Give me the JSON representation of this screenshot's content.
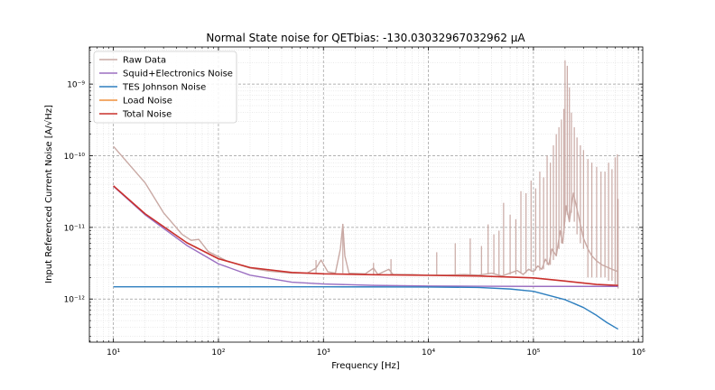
{
  "chart_data": {
    "type": "line",
    "title": "Normal State noise for QETbias: -130.03032967032962 μA",
    "xlabel": "Frequency [Hz]",
    "ylabel": "Input Referenced Current Noise [A/√Hz]",
    "xscale": "log",
    "yscale": "log",
    "xlim": [
      5.9,
      1100000.0
    ],
    "ylim": [
      2.5e-13,
      3.3e-09
    ],
    "grid": true,
    "legend_position": "top-left",
    "x_ticks": [
      {
        "value": 10,
        "label": "10¹"
      },
      {
        "value": 100,
        "label": "10²"
      },
      {
        "value": 1000,
        "label": "10³"
      },
      {
        "value": 10000,
        "label": "10⁴"
      },
      {
        "value": 100000,
        "label": "10⁵"
      },
      {
        "value": 1000000,
        "label": "10⁶"
      }
    ],
    "y_ticks": [
      {
        "value": 1e-12,
        "label": "10⁻¹²"
      },
      {
        "value": 1e-11,
        "label": "10⁻¹¹"
      },
      {
        "value": 1e-10,
        "label": "10⁻¹⁰"
      },
      {
        "value": 1e-09,
        "label": "10⁻⁹"
      }
    ],
    "series": [
      {
        "name": "Raw Data",
        "color": "#c9a9a4",
        "points": [
          [
            10,
            1.35e-10
          ],
          [
            20,
            4.2e-11
          ],
          [
            30,
            1.6e-11
          ],
          [
            45,
            8e-12
          ],
          [
            55,
            6.6e-12
          ],
          [
            65,
            6.8e-12
          ],
          [
            80,
            4.6e-12
          ],
          [
            120,
            3.4e-12
          ],
          [
            200,
            2.7e-12
          ],
          [
            300,
            2.45e-12
          ],
          [
            500,
            2.3e-12
          ],
          [
            700,
            2.3e-12
          ],
          [
            850,
            2.7e-12
          ],
          [
            950,
            3.5e-12
          ],
          [
            1100,
            2.4e-12
          ],
          [
            1300,
            2.3e-12
          ],
          [
            1450,
            5e-12
          ],
          [
            1530,
            1.1e-11
          ],
          [
            1600,
            4e-12
          ],
          [
            1750,
            2.3e-12
          ],
          [
            2500,
            2.25e-12
          ],
          [
            3000,
            2.7e-12
          ],
          [
            3300,
            2.2e-12
          ],
          [
            4200,
            2.6e-12
          ],
          [
            4600,
            2.2e-12
          ],
          [
            7000,
            2.2e-12
          ],
          [
            10000,
            2.15e-12
          ],
          [
            15000,
            2.15e-12
          ],
          [
            22000,
            2.2e-12
          ],
          [
            30000,
            2.15e-12
          ],
          [
            40000,
            2.3e-12
          ],
          [
            50000,
            2.1e-12
          ],
          [
            60000,
            2.3e-12
          ],
          [
            70000,
            2.5e-12
          ],
          [
            80000,
            2.2e-12
          ],
          [
            90000,
            2.6e-12
          ],
          [
            100000,
            2.4e-12
          ],
          [
            110000,
            2.9e-12
          ],
          [
            120000,
            2.6e-12
          ],
          [
            130000,
            3.6e-12
          ],
          [
            140000,
            3e-12
          ],
          [
            150000,
            5e-12
          ],
          [
            165000,
            4e-12
          ],
          [
            180000,
            9e-12
          ],
          [
            190000,
            6e-12
          ],
          [
            205000,
            2e-11
          ],
          [
            220000,
            1.2e-11
          ],
          [
            240000,
            3e-11
          ],
          [
            260000,
            1.8e-11
          ],
          [
            280000,
            1.1e-11
          ],
          [
            300000,
            7e-12
          ],
          [
            330000,
            5e-12
          ],
          [
            360000,
            4e-12
          ],
          [
            400000,
            3.4e-12
          ],
          [
            450000,
            3e-12
          ],
          [
            500000,
            2.8e-12
          ],
          [
            560000,
            2.6e-12
          ],
          [
            600000,
            2.5e-12
          ],
          [
            640000,
            2.4e-12
          ]
        ],
        "spikes": [
          [
            850,
            2.3e-12,
            3.5e-12
          ],
          [
            1530,
            2.3e-12,
            1.12e-11
          ],
          [
            3000,
            2.2e-12,
            3.2e-12
          ],
          [
            4400,
            2.2e-12,
            3.6e-12
          ],
          [
            12000,
            2.15e-12,
            4.5e-12
          ],
          [
            18000,
            2.15e-12,
            6e-12
          ],
          [
            25000,
            2.15e-12,
            7e-12
          ],
          [
            32000,
            2.15e-12,
            5.5e-12
          ],
          [
            37000,
            2.2e-12,
            1.1e-11
          ],
          [
            42000,
            2.2e-12,
            8e-12
          ],
          [
            47000,
            2.2e-12,
            9e-12
          ],
          [
            52000,
            2.2e-12,
            2.2e-11
          ],
          [
            60000,
            2.2e-12,
            1.5e-11
          ],
          [
            68000,
            2.2e-12,
            1.3e-11
          ],
          [
            76000,
            2.3e-12,
            3.2e-11
          ],
          [
            85000,
            2.3e-12,
            3e-11
          ],
          [
            95000,
            2.4e-12,
            4.5e-11
          ],
          [
            105000,
            2.5e-12,
            3.5e-11
          ],
          [
            115000,
            2.5e-12,
            6e-11
          ],
          [
            125000,
            2.6e-12,
            5e-11
          ],
          [
            135000,
            3e-12,
            1e-10
          ],
          [
            145000,
            3e-12,
            8e-11
          ],
          [
            155000,
            3.5e-12,
            1.4e-10
          ],
          [
            165000,
            4e-12,
            2e-10
          ],
          [
            175000,
            5e-12,
            2.5e-10
          ],
          [
            185000,
            6e-12,
            3.2e-10
          ],
          [
            195000,
            8e-12,
            4.5e-10
          ],
          [
            200000,
            1.2e-11,
            2.15e-09
          ],
          [
            210000,
            1.5e-11,
            1.8e-09
          ],
          [
            220000,
            1.2e-11,
            9e-10
          ],
          [
            230000,
            1.6e-11,
            4e-10
          ],
          [
            245000,
            1.2e-11,
            2.5e-10
          ],
          [
            260000,
            8e-12,
            1.8e-10
          ],
          [
            280000,
            6e-12,
            1.4e-10
          ],
          [
            300000,
            5e-12,
            1.2e-10
          ],
          [
            330000,
            2e-12,
            9e-11
          ],
          [
            360000,
            2e-12,
            8e-11
          ],
          [
            400000,
            2e-12,
            7e-11
          ],
          [
            440000,
            2e-12,
            6e-11
          ],
          [
            480000,
            2e-12,
            6e-11
          ],
          [
            520000,
            1.8e-12,
            8e-11
          ],
          [
            560000,
            1.8e-12,
            6.5e-11
          ],
          [
            600000,
            1.6e-12,
            9.5e-11
          ],
          [
            630000,
            1.5e-12,
            1.05e-10
          ],
          [
            640000,
            1.4e-12,
            2.5e-11
          ]
        ]
      },
      {
        "name": "Squid+Electronics Noise",
        "color": "#9b6fc1",
        "points": [
          [
            10,
            3.75e-11
          ],
          [
            20,
            1.5e-11
          ],
          [
            50,
            5.6e-12
          ],
          [
            100,
            3.1e-12
          ],
          [
            200,
            2.15e-12
          ],
          [
            500,
            1.72e-12
          ],
          [
            1000,
            1.62e-12
          ],
          [
            3000,
            1.55e-12
          ],
          [
            10000,
            1.52e-12
          ],
          [
            30000,
            1.51e-12
          ],
          [
            100000,
            1.5e-12
          ],
          [
            300000,
            1.5e-12
          ],
          [
            640000,
            1.5e-12
          ]
        ]
      },
      {
        "name": "TES Johnson Noise",
        "color": "#2e7fbf",
        "points": [
          [
            10,
            1.48e-12
          ],
          [
            1000,
            1.48e-12
          ],
          [
            10000,
            1.47e-12
          ],
          [
            30000,
            1.45e-12
          ],
          [
            60000,
            1.38e-12
          ],
          [
            100000,
            1.28e-12
          ],
          [
            200000,
            9.8e-13
          ],
          [
            300000,
            7.6e-13
          ],
          [
            400000,
            5.9e-13
          ],
          [
            500000,
            4.7e-13
          ],
          [
            640000,
            3.8e-13
          ]
        ]
      },
      {
        "name": "Load Noise",
        "color": "#ef8f3a",
        "points": []
      },
      {
        "name": "Total Noise",
        "color": "#c9302c",
        "points": [
          [
            10,
            3.8e-11
          ],
          [
            20,
            1.55e-11
          ],
          [
            50,
            6.1e-12
          ],
          [
            100,
            3.65e-12
          ],
          [
            200,
            2.75e-12
          ],
          [
            500,
            2.35e-12
          ],
          [
            1000,
            2.25e-12
          ],
          [
            3000,
            2.18e-12
          ],
          [
            10000,
            2.14e-12
          ],
          [
            30000,
            2.1e-12
          ],
          [
            100000,
            1.97e-12
          ],
          [
            200000,
            1.78e-12
          ],
          [
            400000,
            1.6e-12
          ],
          [
            640000,
            1.55e-12
          ]
        ]
      }
    ]
  }
}
